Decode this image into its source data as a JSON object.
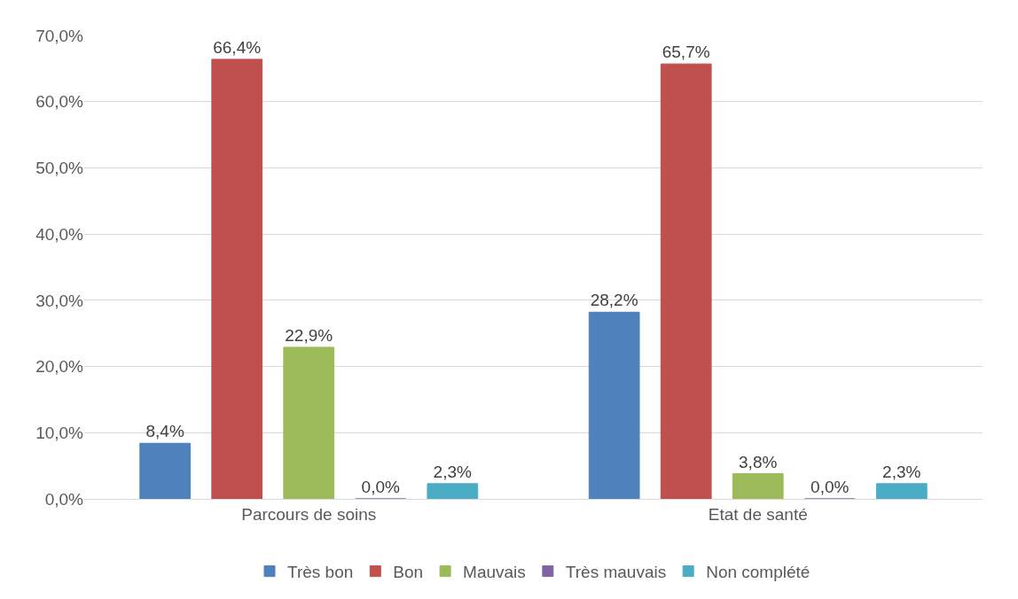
{
  "chart_data": {
    "type": "bar",
    "categories": [
      "Parcours de soins",
      "Etat de santé"
    ],
    "series": [
      {
        "name": "Très bon",
        "color": "#4f81bd",
        "values": [
          8.4,
          28.2
        ],
        "value_labels": [
          "8,4%",
          "28,2%"
        ]
      },
      {
        "name": "Bon",
        "color": "#c0504d",
        "values": [
          66.4,
          65.7
        ],
        "value_labels": [
          "66,4%",
          "65,7%"
        ]
      },
      {
        "name": "Mauvais",
        "color": "#9bbb59",
        "values": [
          22.9,
          3.8
        ],
        "value_labels": [
          "22,9%",
          "3,8%"
        ]
      },
      {
        "name": "Très mauvais",
        "color": "#8064a2",
        "values": [
          0,
          0
        ],
        "value_labels": [
          "0,0%",
          "0,0%"
        ]
      },
      {
        "name": "Non complété",
        "color": "#4bacc6",
        "values": [
          2.3,
          2.3
        ],
        "value_labels": [
          "2,3%",
          "2,3%"
        ]
      }
    ],
    "ylim": [
      0,
      70
    ],
    "yticks": [
      {
        "value": 0,
        "label": "0,0%"
      },
      {
        "value": 10,
        "label": "10,0%"
      },
      {
        "value": 20,
        "label": "20,0%"
      },
      {
        "value": 30,
        "label": "30,0%"
      },
      {
        "value": 40,
        "label": "40,0%"
      },
      {
        "value": 50,
        "label": "50,0%"
      },
      {
        "value": 60,
        "label": "60,0%"
      },
      {
        "value": 70,
        "label": "70,0%"
      }
    ],
    "grid": "y",
    "legend": "bottom"
  }
}
